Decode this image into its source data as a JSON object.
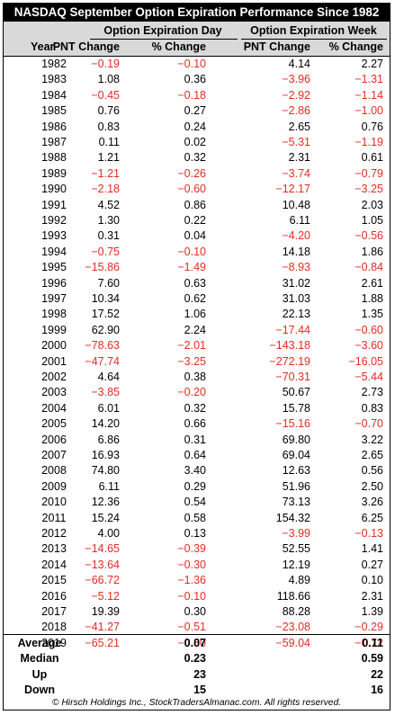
{
  "title": "NASDAQ September Option Expiration Performance Since 1982",
  "header": {
    "group1": "Option Expiration Day",
    "group2": "Option Expiration Week",
    "year": "Year",
    "pnt1": "PNT Change",
    "pct1": "% Change",
    "pnt2": "PNT Change",
    "pct2": "% Change"
  },
  "colors": {
    "negative": "#e32b22",
    "header_bg": "#d9d9d9"
  },
  "rows": [
    {
      "year": "1982",
      "day_pnt": "−0.19",
      "day_pct": "−0.10",
      "week_pnt": "4.14",
      "week_pct": "2.27"
    },
    {
      "year": "1983",
      "day_pnt": "1.08",
      "day_pct": "0.36",
      "week_pnt": "−3.96",
      "week_pct": "−1.31"
    },
    {
      "year": "1984",
      "day_pnt": "−0.45",
      "day_pct": "−0.18",
      "week_pnt": "−2.92",
      "week_pct": "−1.14"
    },
    {
      "year": "1985",
      "day_pnt": "0.76",
      "day_pct": "0.27",
      "week_pnt": "−2.86",
      "week_pct": "−1.00"
    },
    {
      "year": "1986",
      "day_pnt": "0.83",
      "day_pct": "0.24",
      "week_pnt": "2.65",
      "week_pct": "0.76"
    },
    {
      "year": "1987",
      "day_pnt": "0.11",
      "day_pct": "0.02",
      "week_pnt": "−5.31",
      "week_pct": "−1.19"
    },
    {
      "year": "1988",
      "day_pnt": "1.21",
      "day_pct": "0.32",
      "week_pnt": "2.31",
      "week_pct": "0.61"
    },
    {
      "year": "1989",
      "day_pnt": "−1.21",
      "day_pct": "−0.26",
      "week_pnt": "−3.74",
      "week_pct": "−0.79"
    },
    {
      "year": "1990",
      "day_pnt": "−2.18",
      "day_pct": "−0.60",
      "week_pnt": "−12.17",
      "week_pct": "−3.25"
    },
    {
      "year": "1991",
      "day_pnt": "4.52",
      "day_pct": "0.86",
      "week_pnt": "10.48",
      "week_pct": "2.03"
    },
    {
      "year": "1992",
      "day_pnt": "1.30",
      "day_pct": "0.22",
      "week_pnt": "6.11",
      "week_pct": "1.05"
    },
    {
      "year": "1993",
      "day_pnt": "0.31",
      "day_pct": "0.04",
      "week_pnt": "−4.20",
      "week_pct": "−0.56"
    },
    {
      "year": "1994",
      "day_pnt": "−0.75",
      "day_pct": "−0.10",
      "week_pnt": "14.18",
      "week_pct": "1.86"
    },
    {
      "year": "1995",
      "day_pnt": "−15.86",
      "day_pct": "−1.49",
      "week_pnt": "−8.93",
      "week_pct": "−0.84"
    },
    {
      "year": "1996",
      "day_pnt": "7.60",
      "day_pct": "0.63",
      "week_pnt": "31.02",
      "week_pct": "2.61"
    },
    {
      "year": "1997",
      "day_pnt": "10.34",
      "day_pct": "0.62",
      "week_pnt": "31.03",
      "week_pct": "1.88"
    },
    {
      "year": "1998",
      "day_pnt": "17.52",
      "day_pct": "1.06",
      "week_pnt": "22.13",
      "week_pct": "1.35"
    },
    {
      "year": "1999",
      "day_pnt": "62.90",
      "day_pct": "2.24",
      "week_pnt": "−17.44",
      "week_pct": "−0.60"
    },
    {
      "year": "2000",
      "day_pnt": "−78.63",
      "day_pct": "−2.01",
      "week_pnt": "−143.18",
      "week_pct": "−3.60"
    },
    {
      "year": "2001",
      "day_pnt": "−47.74",
      "day_pct": "−3.25",
      "week_pnt": "−272.19",
      "week_pct": "−16.05"
    },
    {
      "year": "2002",
      "day_pnt": "4.64",
      "day_pct": "0.38",
      "week_pnt": "−70.31",
      "week_pct": "−5.44"
    },
    {
      "year": "2003",
      "day_pnt": "−3.85",
      "day_pct": "−0.20",
      "week_pnt": "50.67",
      "week_pct": "2.73"
    },
    {
      "year": "2004",
      "day_pnt": "6.01",
      "day_pct": "0.32",
      "week_pnt": "15.78",
      "week_pct": "0.83"
    },
    {
      "year": "2005",
      "day_pnt": "14.20",
      "day_pct": "0.66",
      "week_pnt": "−15.16",
      "week_pct": "−0.70"
    },
    {
      "year": "2006",
      "day_pnt": "6.86",
      "day_pct": "0.31",
      "week_pnt": "69.80",
      "week_pct": "3.22"
    },
    {
      "year": "2007",
      "day_pnt": "16.93",
      "day_pct": "0.64",
      "week_pnt": "69.04",
      "week_pct": "2.65"
    },
    {
      "year": "2008",
      "day_pnt": "74.80",
      "day_pct": "3.40",
      "week_pnt": "12.63",
      "week_pct": "0.56"
    },
    {
      "year": "2009",
      "day_pnt": "6.11",
      "day_pct": "0.29",
      "week_pnt": "51.96",
      "week_pct": "2.50"
    },
    {
      "year": "2010",
      "day_pnt": "12.36",
      "day_pct": "0.54",
      "week_pnt": "73.13",
      "week_pct": "3.26"
    },
    {
      "year": "2011",
      "day_pnt": "15.24",
      "day_pct": "0.58",
      "week_pnt": "154.32",
      "week_pct": "6.25"
    },
    {
      "year": "2012",
      "day_pnt": "4.00",
      "day_pct": "0.13",
      "week_pnt": "−3.99",
      "week_pct": "−0.13"
    },
    {
      "year": "2013",
      "day_pnt": "−14.65",
      "day_pct": "−0.39",
      "week_pnt": "52.55",
      "week_pct": "1.41"
    },
    {
      "year": "2014",
      "day_pnt": "−13.64",
      "day_pct": "−0.30",
      "week_pnt": "12.19",
      "week_pct": "0.27"
    },
    {
      "year": "2015",
      "day_pnt": "−66.72",
      "day_pct": "−1.36",
      "week_pnt": "4.89",
      "week_pct": "0.10"
    },
    {
      "year": "2016",
      "day_pnt": "−5.12",
      "day_pct": "−0.10",
      "week_pnt": "118.66",
      "week_pct": "2.31"
    },
    {
      "year": "2017",
      "day_pnt": "19.39",
      "day_pct": "0.30",
      "week_pnt": "88.28",
      "week_pct": "1.39"
    },
    {
      "year": "2018",
      "day_pnt": "−41.27",
      "day_pct": "−0.51",
      "week_pnt": "−23.08",
      "week_pct": "−0.29"
    },
    {
      "year": "2019",
      "day_pnt": "−65.21",
      "day_pct": "−0.80",
      "week_pnt": "−59.04",
      "week_pct": "−0.72"
    }
  ],
  "summary": [
    {
      "label": "Average",
      "day_pct": "0.07",
      "week_pct": "0.11"
    },
    {
      "label": "Median",
      "day_pct": "0.23",
      "week_pct": "0.59"
    },
    {
      "label": "Up",
      "day_pct": "23",
      "week_pct": "22"
    },
    {
      "label": "Down",
      "day_pct": "15",
      "week_pct": "16"
    }
  ],
  "footer": "© Hirsch Holdings Inc., StockTradersAlmanac.com. All rights reserved."
}
